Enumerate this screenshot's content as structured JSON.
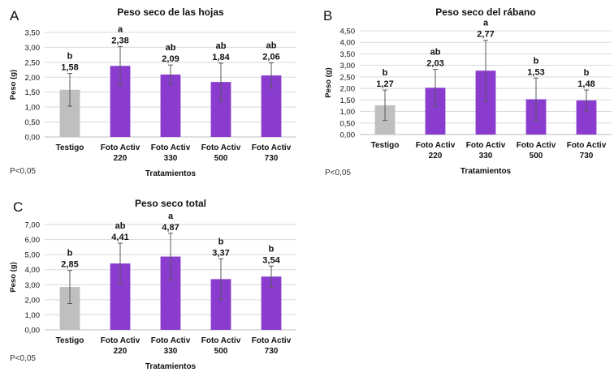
{
  "figure": {
    "footnote": "P<0,05",
    "colors": {
      "control": "#bfbfbf",
      "treatment": "#8a3ccf",
      "error_bar": "#595959",
      "grid": "#d9d9d9",
      "text": "#111111"
    }
  },
  "chart_data": [
    {
      "type": "bar",
      "panel_letter": "A",
      "title": "Peso seco de las hojas",
      "xlabel": "Tratamientos",
      "ylabel": "Peso (g)",
      "ylim": [
        0,
        3.5
      ],
      "yticks": [
        "0,00",
        "0,50",
        "1,00",
        "1,50",
        "2,00",
        "2,50",
        "3,00",
        "3,50"
      ],
      "categories": [
        [
          "Testigo"
        ],
        [
          "Foto Activ",
          "220"
        ],
        [
          "Foto Activ",
          "330"
        ],
        [
          "Foto Activ",
          "500"
        ],
        [
          "Foto Activ",
          "730"
        ]
      ],
      "values": [
        1.58,
        2.38,
        2.09,
        1.84,
        2.06
      ],
      "value_labels": [
        "1,58",
        "2,38",
        "2,09",
        "1,84",
        "2,06"
      ],
      "error": [
        0.55,
        0.65,
        0.32,
        0.63,
        0.42
      ],
      "significance": [
        "b",
        "a",
        "ab",
        "ab",
        "ab"
      ],
      "grid": true,
      "legend": "none"
    },
    {
      "type": "bar",
      "panel_letter": "B",
      "title": "Peso seco del rábano",
      "xlabel": "Tratamientos",
      "ylabel": "Peso (g)",
      "ylim": [
        0,
        4.5
      ],
      "yticks": [
        "0,00",
        "0,50",
        "1,00",
        "1,50",
        "2,00",
        "2,50",
        "3,00",
        "3,50",
        "4,00",
        "4,50"
      ],
      "categories": [
        [
          "Testigo"
        ],
        [
          "Foto Activ",
          "220"
        ],
        [
          "Foto Activ",
          "330"
        ],
        [
          "Foto Activ",
          "500"
        ],
        [
          "Foto Activ",
          "730"
        ]
      ],
      "values": [
        1.27,
        2.03,
        2.77,
        1.53,
        1.48
      ],
      "value_labels": [
        "1,27",
        "2,03",
        "2,77",
        "1,53",
        "1,48"
      ],
      "error": [
        0.66,
        0.8,
        1.32,
        0.92,
        0.45
      ],
      "significance": [
        "b",
        "ab",
        "a",
        "b",
        "b"
      ],
      "grid": true,
      "legend": "none"
    },
    {
      "type": "bar",
      "panel_letter": "C",
      "title": "Peso seco total",
      "xlabel": "Tratamientos",
      "ylabel": "Peso (g)",
      "ylim": [
        0,
        7
      ],
      "yticks": [
        "0,00",
        "1,00",
        "2,00",
        "3,00",
        "4,00",
        "5,00",
        "6,00",
        "7,00"
      ],
      "categories": [
        [
          "Testigo"
        ],
        [
          "Foto Activ",
          "220"
        ],
        [
          "Foto Activ",
          "330"
        ],
        [
          "Foto Activ",
          "500"
        ],
        [
          "Foto Activ",
          "730"
        ]
      ],
      "values": [
        2.85,
        4.41,
        4.87,
        3.37,
        3.54
      ],
      "value_labels": [
        "2,85",
        "4,41",
        "4,87",
        "3,37",
        "3,54"
      ],
      "error": [
        1.1,
        1.35,
        1.55,
        1.35,
        0.7
      ],
      "significance": [
        "b",
        "ab",
        "a",
        "b",
        "b"
      ],
      "grid": true,
      "legend": "none"
    }
  ]
}
